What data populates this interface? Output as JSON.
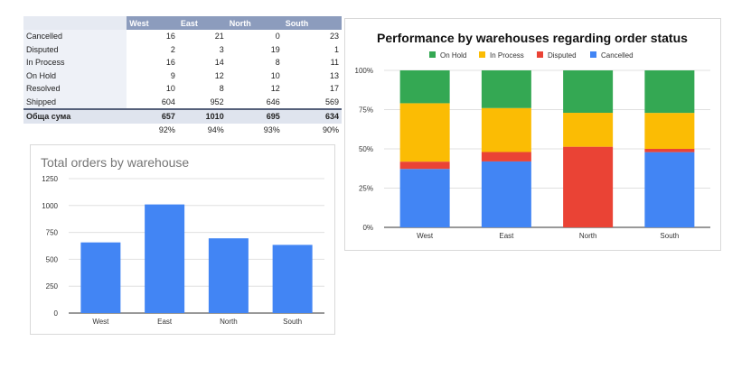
{
  "table": {
    "headers": [
      "West",
      "East",
      "North",
      "South"
    ],
    "rows": [
      {
        "label": "Cancelled",
        "values": [
          "16",
          "21",
          "0",
          "23"
        ]
      },
      {
        "label": "Disputed",
        "values": [
          "2",
          "3",
          "19",
          "1"
        ]
      },
      {
        "label": "In Process",
        "values": [
          "16",
          "14",
          "8",
          "11"
        ]
      },
      {
        "label": "On Hold",
        "values": [
          "9",
          "12",
          "10",
          "13"
        ]
      },
      {
        "label": "Resolved",
        "values": [
          "10",
          "8",
          "12",
          "17"
        ]
      },
      {
        "label": "Shipped",
        "values": [
          "604",
          "952",
          "646",
          "569"
        ]
      }
    ],
    "total": {
      "label": "Обща сума",
      "values": [
        "657",
        "1010",
        "695",
        "634"
      ]
    },
    "percent": {
      "label": "",
      "values": [
        "92%",
        "94%",
        "93%",
        "90%"
      ]
    }
  },
  "chart_data": [
    {
      "type": "bar",
      "title": "Total orders by warehouse",
      "categories": [
        "West",
        "East",
        "North",
        "South"
      ],
      "values": [
        657,
        1010,
        695,
        634
      ],
      "ylim": [
        0,
        1250
      ],
      "yticks": [
        "0",
        "250",
        "500",
        "750",
        "1000",
        "1250"
      ],
      "color": "#4285f4",
      "grid": true
    },
    {
      "type": "bar",
      "stacked": "percent",
      "title": "Performance by warehouses regarding order status",
      "categories": [
        "West",
        "East",
        "North",
        "South"
      ],
      "series": [
        {
          "name": "Cancelled",
          "color": "#4285f4",
          "values": [
            16,
            21,
            0,
            23
          ]
        },
        {
          "name": "Disputed",
          "color": "#ea4335",
          "values": [
            2,
            3,
            19,
            1
          ]
        },
        {
          "name": "In Process",
          "color": "#fbbc04",
          "values": [
            16,
            14,
            8,
            11
          ]
        },
        {
          "name": "On Hold",
          "color": "#34a853",
          "values": [
            9,
            12,
            10,
            13
          ]
        }
      ],
      "legend_order": [
        "On Hold",
        "In Process",
        "Disputed",
        "Cancelled"
      ],
      "yticks": [
        "0%",
        "25%",
        "50%",
        "75%",
        "100%"
      ],
      "legend": "top",
      "grid": true
    }
  ]
}
